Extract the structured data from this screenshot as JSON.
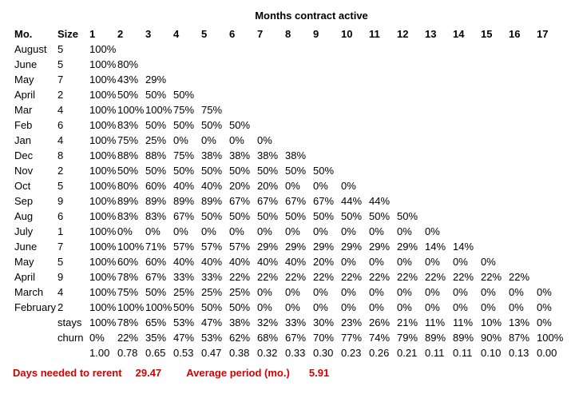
{
  "title": "Months contract active",
  "headers": {
    "mo": "Mo.",
    "size": "Size",
    "months": [
      "1",
      "2",
      "3",
      "4",
      "5",
      "6",
      "7",
      "8",
      "9",
      "10",
      "11",
      "12",
      "13",
      "14",
      "15",
      "16",
      "17"
    ]
  },
  "rows": [
    {
      "mo": "August",
      "size": "5",
      "p": [
        "100%"
      ]
    },
    {
      "mo": "June",
      "size": "5",
      "p": [
        "100%",
        "80%"
      ]
    },
    {
      "mo": "May",
      "size": "7",
      "p": [
        "100%",
        "43%",
        "29%"
      ]
    },
    {
      "mo": "April",
      "size": "2",
      "p": [
        "100%",
        "50%",
        "50%",
        "50%"
      ]
    },
    {
      "mo": "Mar",
      "size": "4",
      "p": [
        "100%",
        "100%",
        "100%",
        "75%",
        "75%"
      ]
    },
    {
      "mo": "Feb",
      "size": "6",
      "p": [
        "100%",
        "83%",
        "50%",
        "50%",
        "50%",
        "50%"
      ]
    },
    {
      "mo": "Jan",
      "size": "4",
      "p": [
        "100%",
        "75%",
        "25%",
        "0%",
        "0%",
        "0%",
        "0%"
      ]
    },
    {
      "mo": "Dec",
      "size": "8",
      "p": [
        "100%",
        "88%",
        "88%",
        "75%",
        "38%",
        "38%",
        "38%",
        "38%"
      ]
    },
    {
      "mo": "Nov",
      "size": "2",
      "p": [
        "100%",
        "50%",
        "50%",
        "50%",
        "50%",
        "50%",
        "50%",
        "50%",
        "50%"
      ]
    },
    {
      "mo": "Oct",
      "size": "5",
      "p": [
        "100%",
        "80%",
        "60%",
        "40%",
        "40%",
        "20%",
        "20%",
        "0%",
        "0%",
        "0%"
      ]
    },
    {
      "mo": "Sep",
      "size": "9",
      "p": [
        "100%",
        "89%",
        "89%",
        "89%",
        "89%",
        "67%",
        "67%",
        "67%",
        "67%",
        "44%",
        "44%"
      ]
    },
    {
      "mo": "Aug",
      "size": "6",
      "p": [
        "100%",
        "83%",
        "83%",
        "67%",
        "50%",
        "50%",
        "50%",
        "50%",
        "50%",
        "50%",
        "50%",
        "50%"
      ]
    },
    {
      "mo": "July",
      "size": "1",
      "p": [
        "100%",
        "0%",
        "0%",
        "0%",
        "0%",
        "0%",
        "0%",
        "0%",
        "0%",
        "0%",
        "0%",
        "0%",
        "0%"
      ]
    },
    {
      "mo": "June",
      "size": "7",
      "p": [
        "100%",
        "100%",
        "71%",
        "57%",
        "57%",
        "57%",
        "29%",
        "29%",
        "29%",
        "29%",
        "29%",
        "29%",
        "14%",
        "14%"
      ]
    },
    {
      "mo": "May",
      "size": "5",
      "p": [
        "100%",
        "60%",
        "60%",
        "40%",
        "40%",
        "40%",
        "40%",
        "40%",
        "20%",
        "0%",
        "0%",
        "0%",
        "0%",
        "0%",
        "0%"
      ]
    },
    {
      "mo": "April",
      "size": "9",
      "p": [
        "100%",
        "78%",
        "67%",
        "33%",
        "33%",
        "22%",
        "22%",
        "22%",
        "22%",
        "22%",
        "22%",
        "22%",
        "22%",
        "22%",
        "22%",
        "22%"
      ]
    },
    {
      "mo": "March",
      "size": "4",
      "p": [
        "100%",
        "75%",
        "50%",
        "25%",
        "25%",
        "25%",
        "0%",
        "0%",
        "0%",
        "0%",
        "0%",
        "0%",
        "0%",
        "0%",
        "0%",
        "0%",
        "0%"
      ]
    },
    {
      "mo": "February",
      "size": "2",
      "p": [
        "100%",
        "100%",
        "100%",
        "50%",
        "50%",
        "50%",
        "0%",
        "0%",
        "0%",
        "0%",
        "0%",
        "0%",
        "0%",
        "0%",
        "0%",
        "0%",
        "0%"
      ]
    }
  ],
  "summary": {
    "stays": {
      "label": "stays",
      "p": [
        "100%",
        "78%",
        "65%",
        "53%",
        "47%",
        "38%",
        "32%",
        "33%",
        "30%",
        "23%",
        "26%",
        "21%",
        "11%",
        "11%",
        "10%",
        "13%",
        "0%"
      ]
    },
    "churn": {
      "label": "churn",
      "p": [
        "0%",
        "22%",
        "35%",
        "47%",
        "53%",
        "62%",
        "68%",
        "67%",
        "70%",
        "77%",
        "74%",
        "79%",
        "89%",
        "89%",
        "90%",
        "87%",
        "100%"
      ]
    },
    "ratio": {
      "label": "",
      "p": [
        "1.00",
        "0.78",
        "0.65",
        "0.53",
        "0.47",
        "0.38",
        "0.32",
        "0.33",
        "0.30",
        "0.23",
        "0.26",
        "0.21",
        "0.11",
        "0.11",
        "0.10",
        "0.13",
        "0.00"
      ]
    }
  },
  "footer": {
    "days_label": "Days needed to rerent",
    "days_value": "29.47",
    "avg_label": "Average period (mo.)",
    "avg_value": "5.91"
  },
  "colors": {
    "text": "#000000",
    "highlight": "#d40000",
    "background": "#ffffff"
  }
}
